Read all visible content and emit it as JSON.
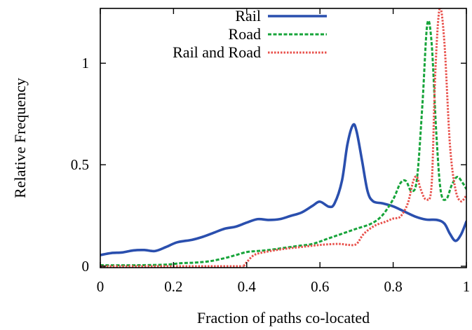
{
  "chart_data": {
    "type": "line",
    "title": "",
    "xlabel": "Fraction of paths co-located",
    "ylabel": "Relative Frequency",
    "xlim": [
      0,
      1
    ],
    "ylim": [
      0,
      1.27
    ],
    "x_ticks": [
      "0",
      "0.2",
      "0.4",
      "0.6",
      "0.8",
      "1"
    ],
    "y_ticks": [
      "0",
      "0.5",
      "1"
    ],
    "legend_position": "top-right",
    "grid": false,
    "series": [
      {
        "name": "Rail",
        "color": "#2a4fae",
        "style": "solid",
        "points": [
          [
            0,
            0.055
          ],
          [
            0.03,
            0.065
          ],
          [
            0.06,
            0.068
          ],
          [
            0.09,
            0.078
          ],
          [
            0.12,
            0.08
          ],
          [
            0.15,
            0.075
          ],
          [
            0.18,
            0.095
          ],
          [
            0.21,
            0.118
          ],
          [
            0.25,
            0.13
          ],
          [
            0.28,
            0.145
          ],
          [
            0.31,
            0.165
          ],
          [
            0.34,
            0.185
          ],
          [
            0.37,
            0.195
          ],
          [
            0.4,
            0.215
          ],
          [
            0.43,
            0.232
          ],
          [
            0.46,
            0.228
          ],
          [
            0.49,
            0.232
          ],
          [
            0.52,
            0.248
          ],
          [
            0.55,
            0.265
          ],
          [
            0.58,
            0.298
          ],
          [
            0.6,
            0.318
          ],
          [
            0.625,
            0.293
          ],
          [
            0.64,
            0.31
          ],
          [
            0.66,
            0.42
          ],
          [
            0.675,
            0.6
          ],
          [
            0.69,
            0.695
          ],
          [
            0.7,
            0.665
          ],
          [
            0.715,
            0.52
          ],
          [
            0.73,
            0.37
          ],
          [
            0.745,
            0.32
          ],
          [
            0.77,
            0.31
          ],
          [
            0.8,
            0.295
          ],
          [
            0.83,
            0.27
          ],
          [
            0.86,
            0.245
          ],
          [
            0.89,
            0.23
          ],
          [
            0.92,
            0.228
          ],
          [
            0.94,
            0.21
          ],
          [
            0.955,
            0.16
          ],
          [
            0.97,
            0.125
          ],
          [
            0.985,
            0.155
          ],
          [
            1,
            0.22
          ]
        ]
      },
      {
        "name": "Road",
        "color": "#17a43a",
        "style": "dashed",
        "points": [
          [
            0,
            0.005
          ],
          [
            0.1,
            0.005
          ],
          [
            0.18,
            0.008
          ],
          [
            0.22,
            0.015
          ],
          [
            0.26,
            0.018
          ],
          [
            0.3,
            0.025
          ],
          [
            0.34,
            0.04
          ],
          [
            0.37,
            0.055
          ],
          [
            0.4,
            0.07
          ],
          [
            0.43,
            0.075
          ],
          [
            0.46,
            0.08
          ],
          [
            0.5,
            0.09
          ],
          [
            0.54,
            0.1
          ],
          [
            0.58,
            0.11
          ],
          [
            0.62,
            0.135
          ],
          [
            0.66,
            0.16
          ],
          [
            0.7,
            0.185
          ],
          [
            0.74,
            0.21
          ],
          [
            0.77,
            0.25
          ],
          [
            0.8,
            0.33
          ],
          [
            0.82,
            0.41
          ],
          [
            0.835,
            0.42
          ],
          [
            0.85,
            0.37
          ],
          [
            0.865,
            0.43
          ],
          [
            0.88,
            0.8
          ],
          [
            0.893,
            1.19
          ],
          [
            0.905,
            1.1
          ],
          [
            0.918,
            0.65
          ],
          [
            0.93,
            0.37
          ],
          [
            0.945,
            0.33
          ],
          [
            0.96,
            0.4
          ],
          [
            0.975,
            0.44
          ],
          [
            0.99,
            0.41
          ],
          [
            1,
            0.38
          ]
        ]
      },
      {
        "name": "Rail and Road",
        "color": "#e8514c",
        "style": "dotted",
        "points": [
          [
            0,
            0.0
          ],
          [
            0.35,
            0.0
          ],
          [
            0.39,
            0.003
          ],
          [
            0.4,
            0.02
          ],
          [
            0.42,
            0.055
          ],
          [
            0.45,
            0.07
          ],
          [
            0.5,
            0.085
          ],
          [
            0.55,
            0.095
          ],
          [
            0.6,
            0.105
          ],
          [
            0.65,
            0.11
          ],
          [
            0.68,
            0.105
          ],
          [
            0.7,
            0.11
          ],
          [
            0.72,
            0.16
          ],
          [
            0.75,
            0.2
          ],
          [
            0.78,
            0.22
          ],
          [
            0.8,
            0.235
          ],
          [
            0.82,
            0.245
          ],
          [
            0.84,
            0.31
          ],
          [
            0.855,
            0.42
          ],
          [
            0.865,
            0.44
          ],
          [
            0.875,
            0.38
          ],
          [
            0.89,
            0.33
          ],
          [
            0.905,
            0.4
          ],
          [
            0.915,
            0.95
          ],
          [
            0.927,
            1.27
          ],
          [
            0.94,
            1.1
          ],
          [
            0.955,
            0.6
          ],
          [
            0.97,
            0.38
          ],
          [
            0.985,
            0.32
          ],
          [
            1,
            0.35
          ]
        ]
      }
    ]
  }
}
